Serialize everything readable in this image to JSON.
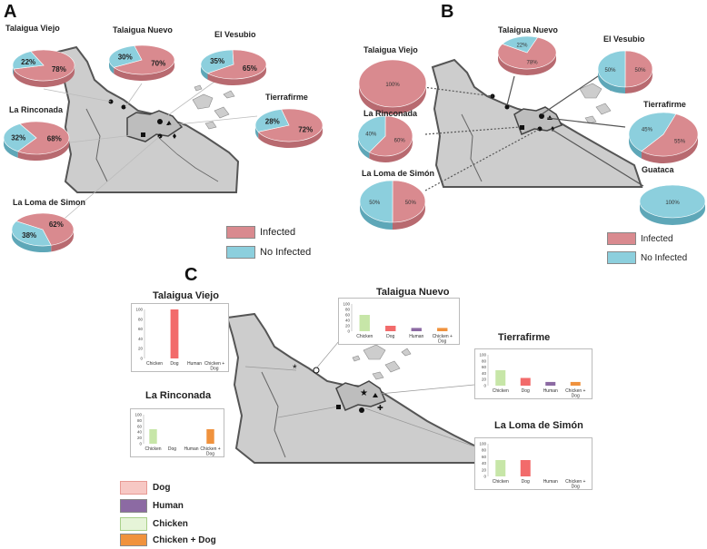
{
  "panels": {
    "a": {
      "letter": "A"
    },
    "b": {
      "letter": "B"
    },
    "c": {
      "letter": "C"
    }
  },
  "colors": {
    "infected": "#d98a8f",
    "infected_side": "#b86a70",
    "not_infected": "#8ccfdd",
    "not_infected_side": "#5ea7b8",
    "map_land": "#cdcdcd",
    "map_border": "#555555",
    "dog": "#f26b6b",
    "human": "#8c6aa3",
    "chicken": "#c7e6a8",
    "chicken_dog": "#f0923d"
  },
  "legend_ab": {
    "infected": "Infected",
    "not_infected": "No Infected"
  },
  "legend_c": {
    "dog": "Dog",
    "human": "Human",
    "chicken": "Chicken",
    "chicken_dog": "Chicken + Dog"
  },
  "chart_data": [
    {
      "panel": "A",
      "type": "pie",
      "series_labels": [
        "Infected",
        "No Infected"
      ],
      "sites": [
        {
          "name": "Talaigua Viejo",
          "infected": 78,
          "not_infected": 22,
          "labels": [
            "78%",
            "22%"
          ]
        },
        {
          "name": "Talaigua Nuevo",
          "infected": 70,
          "not_infected": 30,
          "labels": [
            "70%",
            "30%"
          ]
        },
        {
          "name": "El Vesubio",
          "infected": 65,
          "not_infected": 35,
          "labels": [
            "65%",
            "35%"
          ]
        },
        {
          "name": "La Rinconada",
          "infected": 68,
          "not_infected": 32,
          "labels": [
            "68%",
            "32%"
          ]
        },
        {
          "name": "Tierrafirme",
          "infected": 72,
          "not_infected": 28,
          "labels": [
            "72%",
            "28%"
          ]
        },
        {
          "name": "La Loma de Simon",
          "infected": 62,
          "not_infected": 38,
          "labels": [
            "62%",
            "38%"
          ]
        }
      ]
    },
    {
      "panel": "B",
      "type": "pie",
      "series_labels": [
        "Infected",
        "No Infected"
      ],
      "sites": [
        {
          "name": "Talaigua Viejo",
          "infected": 100,
          "not_infected": 0,
          "labels": [
            "100%",
            ""
          ]
        },
        {
          "name": "Talaigua Nuevo",
          "infected": 78,
          "not_infected": 22,
          "labels": [
            "78%",
            "22%"
          ]
        },
        {
          "name": "El Vesubio",
          "infected": 50,
          "not_infected": 50,
          "labels": [
            "50%",
            "50%"
          ]
        },
        {
          "name": "La Rinconada",
          "infected": 60,
          "not_infected": 40,
          "labels": [
            "60%",
            "40%"
          ]
        },
        {
          "name": "Tierrafirme",
          "infected": 55,
          "not_infected": 45,
          "labels": [
            "55%",
            "45%"
          ]
        },
        {
          "name": "La Loma de Simón",
          "infected": 50,
          "not_infected": 50,
          "labels": [
            "50%",
            "50%"
          ]
        },
        {
          "name": "Guataca",
          "infected": 0,
          "not_infected": 100,
          "labels": [
            "",
            "100%"
          ]
        }
      ]
    },
    {
      "panel": "C",
      "type": "bar",
      "categories": [
        "Chicken",
        "Dog",
        "Human",
        "Chicken + Dog"
      ],
      "ylim": [
        0,
        100
      ],
      "yticks": [
        "0",
        "20",
        "40",
        "60",
        "80",
        "100"
      ],
      "sites": [
        {
          "name": "Talaigua Viejo",
          "values": [
            0,
            100,
            0,
            0
          ]
        },
        {
          "name": "Talaigua Nuevo",
          "values": [
            60,
            20,
            12,
            12
          ]
        },
        {
          "name": "La Rinconada",
          "values": [
            50,
            0,
            0,
            50
          ]
        },
        {
          "name": "Tierrafirme",
          "values": [
            50,
            25,
            12,
            12
          ]
        },
        {
          "name": "La Loma de Simón",
          "values": [
            50,
            50,
            0,
            0
          ]
        }
      ]
    }
  ]
}
